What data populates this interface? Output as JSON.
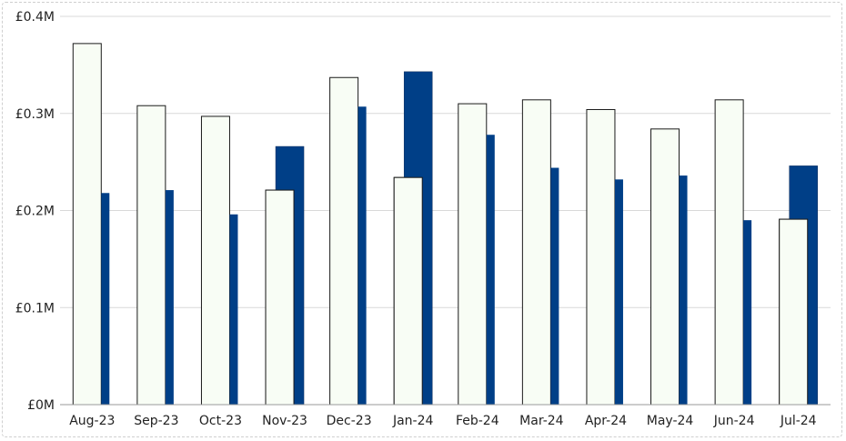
{
  "chart_data": {
    "type": "bar",
    "categories": [
      "Aug-23",
      "Sep-23",
      "Oct-23",
      "Nov-23",
      "Dec-23",
      "Jan-24",
      "Feb-24",
      "Mar-24",
      "Apr-24",
      "May-24",
      "Jun-24",
      "Jul-24"
    ],
    "series": [
      {
        "values": [
          0.372,
          0.308,
          0.297,
          0.221,
          0.337,
          0.234,
          0.31,
          0.314,
          0.304,
          0.284,
          0.314,
          0.191
        ],
        "color": "#f8fdf5"
      },
      {
        "values": [
          0.218,
          0.221,
          0.196,
          0.266,
          0.307,
          0.343,
          0.278,
          0.244,
          0.232,
          0.236,
          0.19,
          0.246
        ],
        "color": "#003f87"
      }
    ],
    "ylim": [
      0,
      0.4
    ],
    "yticks": [
      0,
      0.1,
      0.2,
      0.3,
      0.4
    ],
    "ytick_labels": [
      "£0M",
      "£0.1M",
      "£0.2M",
      "£0.3M",
      "£0.4M"
    ],
    "grid": true,
    "title": "",
    "xlabel": "",
    "ylabel": ""
  }
}
